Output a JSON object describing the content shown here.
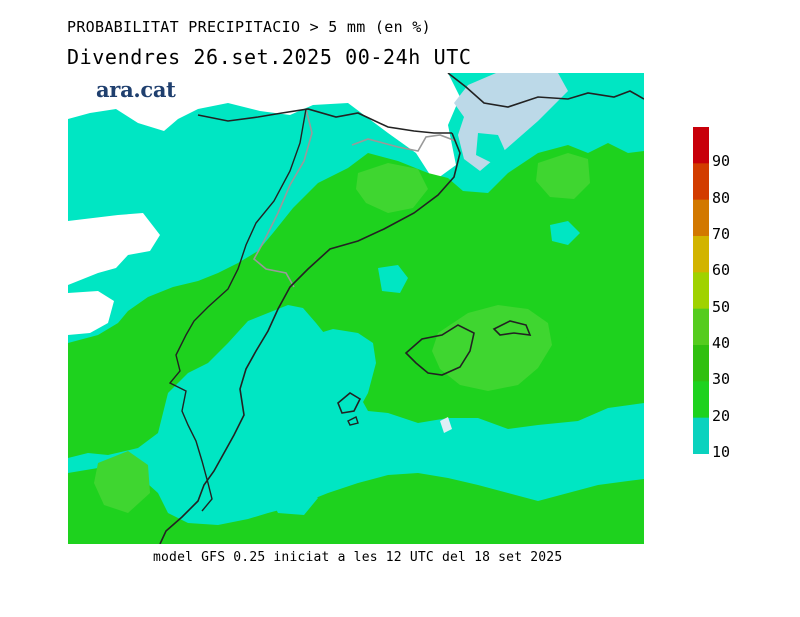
{
  "header": {
    "title_line1": "PROBABILITAT PRECIPITACIO > 5 mm (en %)",
    "title_line2": "Divendres  26.set.2025 00-24h UTC"
  },
  "logo": {
    "text": "ara.cat"
  },
  "footer": {
    "model_info": "model GFS 0.25 iniciat a les 12 UTC del 18 set 2025"
  },
  "legend": {
    "labels": [
      "90",
      "80",
      "70",
      "60",
      "50",
      "40",
      "30",
      "20",
      "10"
    ],
    "colors": [
      "#c8000a",
      "#d23c00",
      "#d27800",
      "#d2b400",
      "#a0d200",
      "#55cc1e",
      "#30c00f",
      "#1ed21e",
      "#0ad2be"
    ]
  },
  "map_colors": {
    "below_10": "#ffffff",
    "c10_20": "#00e6c3",
    "c20_30": "#1ed21e",
    "c30_40": "#2fcc28",
    "c40_50": "#52d62a",
    "sea_outside": "#bcd9e8",
    "coast": "#222222",
    "border": "#999999"
  }
}
